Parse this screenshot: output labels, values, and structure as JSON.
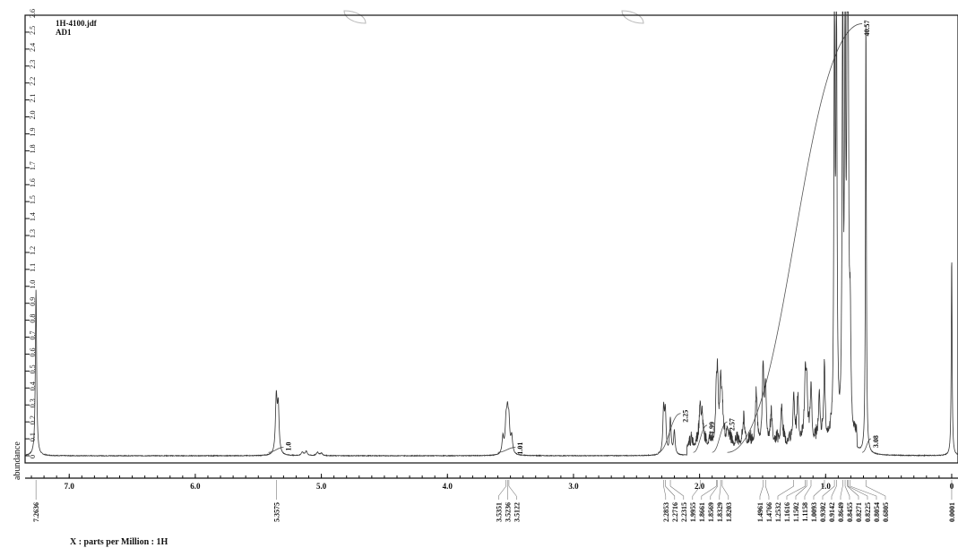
{
  "header": {
    "file_name": "1H-4100.jdf",
    "sample_name": "AD1"
  },
  "chart_data": {
    "type": "line",
    "title": "",
    "xlabel": "X : parts per Million : 1H",
    "ylabel": "abundance",
    "xlim": [
      7.35,
      -0.05
    ],
    "ylim": [
      -0.05,
      2.6
    ],
    "x_reversed": true,
    "grid": false,
    "x_ticks": [
      {
        "value": 7.0,
        "label": "7.0"
      },
      {
        "value": 6.0,
        "label": "6.0"
      },
      {
        "value": 5.0,
        "label": "5.0"
      },
      {
        "value": 4.0,
        "label": "4.0"
      },
      {
        "value": 3.0,
        "label": "3.0"
      },
      {
        "value": 2.0,
        "label": "2.0"
      },
      {
        "value": 1.0,
        "label": "1.0"
      },
      {
        "value": 0.0,
        "label": "0"
      }
    ],
    "y_ticks": [
      {
        "value": 0.0,
        "label": "0"
      },
      {
        "value": 0.1,
        "label": "0.1"
      },
      {
        "value": 0.2,
        "label": "0.2"
      },
      {
        "value": 0.3,
        "label": "0.3"
      },
      {
        "value": 0.4,
        "label": "0.4"
      },
      {
        "value": 0.5,
        "label": "0.5"
      },
      {
        "value": 0.6,
        "label": "0.6"
      },
      {
        "value": 0.7,
        "label": "0.7"
      },
      {
        "value": 0.8,
        "label": "0.8"
      },
      {
        "value": 0.9,
        "label": "0.9"
      },
      {
        "value": 1.0,
        "label": "1.0"
      },
      {
        "value": 1.1,
        "label": "1.1"
      },
      {
        "value": 1.2,
        "label": "1.2"
      },
      {
        "value": 1.3,
        "label": "1.3"
      },
      {
        "value": 1.4,
        "label": "1.4"
      },
      {
        "value": 1.5,
        "label": "1.5"
      },
      {
        "value": 1.6,
        "label": "1.6"
      },
      {
        "value": 1.7,
        "label": "1.7"
      },
      {
        "value": 1.8,
        "label": "1.8"
      },
      {
        "value": 1.9,
        "label": "1.9"
      },
      {
        "value": 2.0,
        "label": "2.0"
      },
      {
        "value": 2.1,
        "label": "2.1"
      },
      {
        "value": 2.2,
        "label": "2.2"
      },
      {
        "value": 2.3,
        "label": "2.3"
      },
      {
        "value": 2.4,
        "label": "2.4"
      },
      {
        "value": 2.5,
        "label": "2.5"
      },
      {
        "value": 2.6,
        "label": "2.6"
      }
    ],
    "peaks": [
      {
        "ppm": 7.2636,
        "height": 0.98,
        "width": 0.006
      },
      {
        "ppm": 5.3575,
        "height": 0.33,
        "width": 0.008
      },
      {
        "ppm": 5.342,
        "height": 0.27,
        "width": 0.008
      },
      {
        "ppm": 5.15,
        "height": 0.02,
        "width": 0.01
      },
      {
        "ppm": 5.12,
        "height": 0.025,
        "width": 0.01
      },
      {
        "ppm": 5.03,
        "height": 0.02,
        "width": 0.01
      },
      {
        "ppm": 5.0,
        "height": 0.015,
        "width": 0.01
      },
      {
        "ppm": 3.5351,
        "height": 0.17,
        "width": 0.008
      },
      {
        "ppm": 3.5236,
        "height": 0.2,
        "width": 0.008
      },
      {
        "ppm": 3.5122,
        "height": 0.17,
        "width": 0.008
      },
      {
        "ppm": 3.56,
        "height": 0.1,
        "width": 0.008
      },
      {
        "ppm": 3.49,
        "height": 0.1,
        "width": 0.008
      },
      {
        "ppm": 2.2853,
        "height": 0.26,
        "width": 0.007
      },
      {
        "ppm": 2.2716,
        "height": 0.24,
        "width": 0.007
      },
      {
        "ppm": 2.2315,
        "height": 0.21,
        "width": 0.007
      },
      {
        "ppm": 2.2,
        "height": 0.14,
        "width": 0.007
      },
      {
        "ppm": 1.9955,
        "height": 0.24,
        "width": 0.007
      },
      {
        "ppm": 1.98,
        "height": 0.16,
        "width": 0.007
      },
      {
        "ppm": 1.8661,
        "height": 0.3,
        "width": 0.007
      },
      {
        "ppm": 1.8569,
        "height": 0.28,
        "width": 0.007
      },
      {
        "ppm": 1.8329,
        "height": 0.37,
        "width": 0.007
      },
      {
        "ppm": 1.8203,
        "height": 0.2,
        "width": 0.007
      },
      {
        "ppm": 1.78,
        "height": 0.1,
        "width": 0.008
      },
      {
        "ppm": 1.65,
        "height": 0.12,
        "width": 0.01
      },
      {
        "ppm": 1.55,
        "height": 0.28,
        "width": 0.008
      },
      {
        "ppm": 1.4961,
        "height": 0.46,
        "width": 0.007
      },
      {
        "ppm": 1.4766,
        "height": 0.34,
        "width": 0.007
      },
      {
        "ppm": 1.43,
        "height": 0.16,
        "width": 0.008
      },
      {
        "ppm": 1.35,
        "height": 0.2,
        "width": 0.008
      },
      {
        "ppm": 1.2532,
        "height": 0.3,
        "width": 0.007
      },
      {
        "ppm": 1.22,
        "height": 0.26,
        "width": 0.007
      },
      {
        "ppm": 1.1616,
        "height": 0.36,
        "width": 0.007
      },
      {
        "ppm": 1.1502,
        "height": 0.34,
        "width": 0.007
      },
      {
        "ppm": 1.1158,
        "height": 0.33,
        "width": 0.007
      },
      {
        "ppm": 1.05,
        "height": 0.3,
        "width": 0.007
      },
      {
        "ppm": 1.0093,
        "height": 0.45,
        "width": 0.006
      },
      {
        "ppm": 0.9302,
        "height": 2.6,
        "width": 0.005
      },
      {
        "ppm": 0.9142,
        "height": 2.6,
        "width": 0.005
      },
      {
        "ppm": 0.8649,
        "height": 2.6,
        "width": 0.005
      },
      {
        "ppm": 0.8455,
        "height": 2.6,
        "width": 0.005
      },
      {
        "ppm": 0.8271,
        "height": 2.6,
        "width": 0.005
      },
      {
        "ppm": 0.8225,
        "height": 2.3,
        "width": 0.005
      },
      {
        "ppm": 0.8054,
        "height": 0.6,
        "width": 0.006
      },
      {
        "ppm": 0.6805,
        "height": 2.6,
        "width": 0.004
      },
      {
        "ppm": 0.0001,
        "height": 1.18,
        "width": 0.004
      }
    ],
    "peak_labels": [
      {
        "ppm": 7.2636,
        "label": "7.2636"
      },
      {
        "ppm": 5.3575,
        "label": "5.3575"
      },
      {
        "ppm": 3.5351,
        "label": "3.5351"
      },
      {
        "ppm": 3.5236,
        "label": "3.5236"
      },
      {
        "ppm": 3.5122,
        "label": "3.5122"
      },
      {
        "ppm": 2.2853,
        "label": "2.2853"
      },
      {
        "ppm": 2.2716,
        "label": "2.2716"
      },
      {
        "ppm": 2.2315,
        "label": "2.2315"
      },
      {
        "ppm": 1.9955,
        "label": "1.9955"
      },
      {
        "ppm": 1.8661,
        "label": "1.8661"
      },
      {
        "ppm": 1.8569,
        "label": "1.8569"
      },
      {
        "ppm": 1.8329,
        "label": "1.8329"
      },
      {
        "ppm": 1.8203,
        "label": "1.8203"
      },
      {
        "ppm": 1.4961,
        "label": "1.4961"
      },
      {
        "ppm": 1.4766,
        "label": "1.4766"
      },
      {
        "ppm": 1.2532,
        "label": "1.2532"
      },
      {
        "ppm": 1.1616,
        "label": "1.1616"
      },
      {
        "ppm": 1.1502,
        "label": "1.1502"
      },
      {
        "ppm": 1.1158,
        "label": "1.1158"
      },
      {
        "ppm": 1.0093,
        "label": "1.0093"
      },
      {
        "ppm": 0.9302,
        "label": "0.9302"
      },
      {
        "ppm": 0.9142,
        "label": "0.9142"
      },
      {
        "ppm": 0.8649,
        "label": "0.8649"
      },
      {
        "ppm": 0.8455,
        "label": "0.8455"
      },
      {
        "ppm": 0.8271,
        "label": "0.8271"
      },
      {
        "ppm": 0.8225,
        "label": "0.8225"
      },
      {
        "ppm": 0.8054,
        "label": "0.8054"
      },
      {
        "ppm": 0.6805,
        "label": "0.6805"
      },
      {
        "ppm": 0.0001,
        "label": "0.0001"
      }
    ],
    "integrals": [
      {
        "from": 5.42,
        "to": 5.3,
        "label": "1.0",
        "curve_to": 0.05
      },
      {
        "from": 3.6,
        "to": 3.46,
        "label": "1.01",
        "curve_to": 0.05
      },
      {
        "from": 2.33,
        "to": 2.15,
        "label": "2.25",
        "curve_to": 0.25
      },
      {
        "from": 2.05,
        "to": 1.94,
        "label": "1.99",
        "curve_to": 0.18
      },
      {
        "from": 1.9,
        "to": 1.78,
        "label": "2.57",
        "curve_to": 0.2
      },
      {
        "from": 1.78,
        "to": 0.71,
        "label": "40.57",
        "curve_to": 2.55
      },
      {
        "from": 0.71,
        "to": 0.64,
        "label": "3.08",
        "curve_to": 0.1
      }
    ]
  }
}
